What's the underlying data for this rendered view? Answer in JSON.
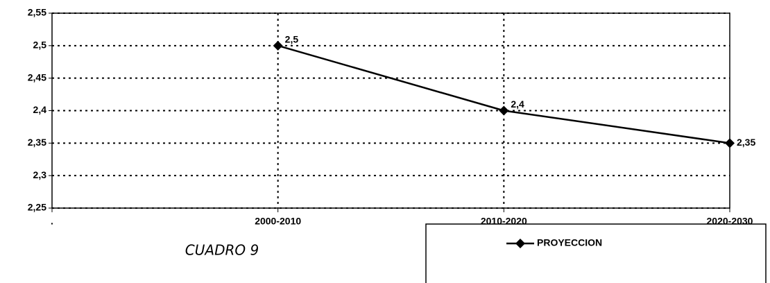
{
  "chart_data": {
    "type": "line",
    "annotation": "CUADRO 9",
    "categories": [
      ".",
      "2000-2010",
      "2010-2020",
      "2020-2030"
    ],
    "series": [
      {
        "name": "PROYECCION",
        "color": "#000000",
        "values": [
          null,
          2.5,
          2.4,
          2.35
        ],
        "value_labels": [
          null,
          "2,5",
          "2,4",
          "2,35"
        ]
      }
    ],
    "ylim": [
      2.25,
      2.55
    ],
    "yticks": [
      {
        "value": 2.25,
        "label": "2,25"
      },
      {
        "value": 2.3,
        "label": "2,3"
      },
      {
        "value": 2.35,
        "label": "2,35"
      },
      {
        "value": 2.4,
        "label": "2,4"
      },
      {
        "value": 2.45,
        "label": "2,45"
      },
      {
        "value": 2.5,
        "label": "2,5"
      },
      {
        "value": 2.55,
        "label": "2,55"
      }
    ],
    "grid": true,
    "legend": "bottom-right"
  }
}
